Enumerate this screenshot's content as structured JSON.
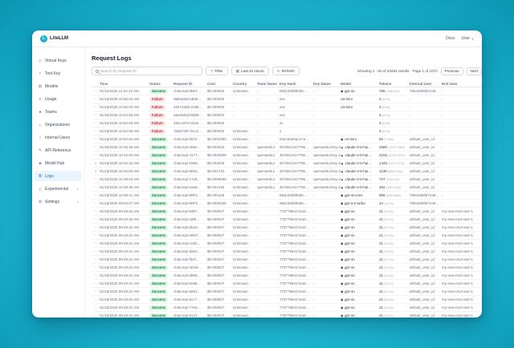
{
  "colors": {
    "background_teal": "#23bdd8",
    "accent_blue": "#1d6fc2",
    "success_bg": "#d7f5e3",
    "success_text": "#15803d",
    "failure_bg": "#fde3e3",
    "failure_text": "#c53030"
  },
  "topbar": {
    "brand": "LiteLLM",
    "docs_label": "Docs",
    "user_label": "User"
  },
  "sidebar": {
    "items": [
      {
        "label": "Virtual Keys",
        "icon_name": "key-icon",
        "glyph": "◇"
      },
      {
        "label": "Test Key",
        "icon_name": "test-key-icon",
        "glyph": "✓"
      },
      {
        "label": "Models",
        "icon_name": "models-icon",
        "glyph": "⊞"
      },
      {
        "label": "Usage",
        "icon_name": "usage-chart-icon",
        "glyph": "≡"
      },
      {
        "label": "Teams",
        "icon_name": "teams-icon",
        "glyph": "●"
      },
      {
        "label": "Organizations",
        "icon_name": "organizations-icon",
        "glyph": "⌂"
      },
      {
        "label": "Internal Users",
        "icon_name": "internal-users-icon",
        "glyph": "○"
      },
      {
        "label": "API Reference",
        "icon_name": "api-reference-icon",
        "glyph": "✎"
      },
      {
        "label": "Model Hub",
        "icon_name": "model-hub-icon",
        "glyph": "◈"
      },
      {
        "label": "Logs",
        "icon_name": "logs-icon",
        "glyph": "≣",
        "selected": true
      },
      {
        "label": "Experimental",
        "icon_name": "experimental-icon",
        "glyph": "△",
        "expandable": true
      },
      {
        "label": "Settings",
        "icon_name": "settings-icon",
        "glyph": "⚙",
        "expandable": true
      }
    ]
  },
  "page": {
    "title": "Request Logs"
  },
  "toolbar": {
    "search_placeholder": "Search by Request ID",
    "filter_label": "Filter",
    "time_range_label": "Last 24 Hours",
    "refresh_label": "Refresh"
  },
  "pagination": {
    "showing": "Showing 1 - 50 of 53494 results",
    "page": "Page 1 of 1070",
    "previous_label": "Previous",
    "next_label": "Next"
  },
  "table": {
    "columns": [
      "",
      "Time",
      "Status",
      "Request ID",
      "Cost",
      "Country",
      "Team Name",
      "Key Hash",
      "Key Name",
      "Model",
      "Tokens",
      "Internal User",
      "End User"
    ],
    "rows": [
      {
        "expanded": false,
        "time": "01/15/2025 11:02:10 AM",
        "status": "Success",
        "request_id": "chatcmpl-8B07…",
        "cost": "$0.000000",
        "country": "Unknown",
        "team": "-",
        "key_hash": "88dc28d8f838c…",
        "key_name": "-",
        "model": "gpt-4o",
        "provider": "openai",
        "tokens": "788",
        "tokens_detail": "(768+20)",
        "internal_user": "7854485087248…",
        "end_user": "-"
      },
      {
        "expanded": false,
        "time": "01/15/2025 10:55:02 AM",
        "status": "Failure",
        "request_id": "d8b4a5af-eb98…",
        "cost": "$0.000000",
        "country": "-",
        "team": "-",
        "key_hash": "sss",
        "key_name": "-",
        "model": "o3-mini",
        "provider": "none",
        "tokens": "0",
        "tokens_detail": "(0+0)",
        "internal_user": "-",
        "end_user": "-"
      },
      {
        "expanded": false,
        "time": "01/15/2025 10:55:00 AM",
        "status": "Failure",
        "request_id": "43474a9b-3188…",
        "cost": "$0.000000",
        "country": "-",
        "team": "-",
        "key_hash": "sss",
        "key_name": "-",
        "model": "o3-mini",
        "provider": "none",
        "tokens": "0",
        "tokens_detail": "(0+0)",
        "internal_user": "-",
        "end_user": "-"
      },
      {
        "expanded": false,
        "time": "01/15/2025 10:54:59 AM",
        "status": "Failure",
        "request_id": "a9eeb81d-b8b8…",
        "cost": "$0.000000",
        "country": "-",
        "team": "-",
        "key_hash": "sss",
        "key_name": "-",
        "model": "",
        "provider": "none",
        "tokens": "0",
        "tokens_detail": "(0+0)",
        "internal_user": "-",
        "end_user": "-"
      },
      {
        "expanded": false,
        "time": "01/15/2025 10:54:59 AM",
        "status": "Failure",
        "request_id": "334c187d-4b4e…",
        "cost": "$0.000000",
        "country": "-",
        "team": "-",
        "key_hash": "ss",
        "key_name": "-",
        "model": "",
        "provider": "none",
        "tokens": "0",
        "tokens_detail": "(0+0)",
        "internal_user": "-",
        "end_user": "-"
      },
      {
        "expanded": false,
        "time": "01/15/2025 10:54:58 AM",
        "status": "Failure",
        "request_id": "7eb67387-bcc2…",
        "cost": "$0.000000",
        "country": "Unknown",
        "team": "-",
        "key_hash": "s",
        "key_name": "-",
        "model": "",
        "provider": "none",
        "tokens": "0",
        "tokens_detail": "(0+0)",
        "internal_user": "-",
        "end_user": "-"
      },
      {
        "expanded": false,
        "time": "01/15/2025 10:54:54 AM",
        "status": "Success",
        "request_id": "chatcmpl-b87e…",
        "cost": "$0.0003382",
        "country": "Unknown",
        "team": "-",
        "key_hash": "84ec5a2eac17a…",
        "key_name": "-",
        "model": "o3-mini",
        "provider": "openai",
        "tokens": "92",
        "tokens_detail": "(7+85)",
        "internal_user": "default_user_id",
        "end_user": "-"
      },
      {
        "expanded": false,
        "time": "01/15/2025 10:45:49 AM",
        "status": "Success",
        "request_id": "chatcmpl-ebbe…",
        "cost": "$0.002034",
        "country": "Unknown",
        "team": "openwebui",
        "key_hash": "4b7651c6c7795…",
        "key_name": "openwebui-key-2",
        "model": "claude-3-5-hai…",
        "provider": "anthropic",
        "tokens": "2580",
        "tokens_detail": "(2127+453)",
        "internal_user": "default_user_id",
        "end_user": "-"
      },
      {
        "expanded": false,
        "time": "01/15/2025 10:43:00 AM",
        "status": "Success",
        "request_id": "chatcmpl-4177…",
        "cost": "$0.0020808",
        "country": "Unknown",
        "team": "openwebui",
        "key_hash": "4b7651c6c7795…",
        "key_name": "openwebui-key-2",
        "model": "claude-3-5-hai…",
        "provider": "anthropic",
        "tokens": "2102",
        "tokens_detail": "(1732+370)",
        "internal_user": "default_user_id",
        "end_user": "-"
      },
      {
        "expanded": true,
        "time": "01/15/2025 10:40:33 AM",
        "status": "Success",
        "request_id": "chatcmpl-1858…",
        "cost": "$0.002030",
        "country": "Unknown",
        "team": "openwebui",
        "key_hash": "4b7651c6c7795…",
        "key_name": "openwebui-key-2",
        "model": "claude-3-5-hai…",
        "provider": "anthropic",
        "tokens": "1433",
        "tokens_detail": "(1157+276)",
        "internal_user": "default_user_id",
        "end_user": "-"
      },
      {
        "expanded": true,
        "time": "01/15/2025 10:40:00 AM",
        "status": "Success",
        "request_id": "chatcmpl-883a…",
        "cost": "$0.001724",
        "country": "Unknown",
        "team": "openwebui",
        "key_hash": "4b7651c6c7795…",
        "key_name": "openwebui-key-2",
        "model": "claude-3-5-hai…",
        "provider": "anthropic",
        "tokens": "1139",
        "tokens_detail": "(885+254)",
        "internal_user": "default_user_id",
        "end_user": "-"
      },
      {
        "expanded": false,
        "time": "01/15/2025 10:39:53 AM",
        "status": "Success",
        "request_id": "chatcmpl-1748…",
        "cost": "$0.0009055",
        "country": "Unknown",
        "team": "openwebui",
        "key_hash": "4b7651c6c7795…",
        "key_name": "openwebui-key-2",
        "model": "claude-3-5-hai…",
        "provider": "anthropic",
        "tokens": "727",
        "tokens_detail": "(704+23)",
        "internal_user": "default_user_id",
        "end_user": "-"
      },
      {
        "expanded": false,
        "time": "01/15/2025 10:39:46 AM",
        "status": "Success",
        "request_id": "chatcmpl-eaa6…",
        "cost": "$0.001336",
        "country": "Unknown",
        "team": "openwebui",
        "key_hash": "4b7651c6c7795…",
        "key_name": "openwebui-key-2",
        "model": "claude-3-5-hai…",
        "provider": "anthropic",
        "tokens": "482",
        "tokens_detail": "(180+302)",
        "internal_user": "default_user_id",
        "end_user": "-"
      },
      {
        "expanded": false,
        "time": "01/15/2025 10:38:41 AM",
        "status": "Success",
        "request_id": "chatcmpl-88P1…",
        "cost": "$0.000445",
        "country": "Unknown",
        "team": "-",
        "key_hash": "88dc28d8f838c…",
        "key_name": "-",
        "model": "gpt-4o-mini",
        "provider": "openai",
        "tokens": "889",
        "tokens_detail": "(209+680)",
        "internal_user": "7854485087248…",
        "end_user": "-"
      },
      {
        "expanded": false,
        "time": "01/15/2025 09:53:57 AM",
        "status": "Success",
        "request_id": "chatcmpl-88P3…",
        "cost": "$0.0000325",
        "country": "Unknown",
        "team": "-",
        "key_hash": "88dc28d8f838c…",
        "key_name": "-",
        "model": "gpt-3.5-turbo",
        "provider": "openai",
        "tokens": "44",
        "tokens_detail": "(41+3)",
        "internal_user": "7854485087248…",
        "end_user": "-"
      },
      {
        "expanded": false,
        "time": "01/15/2025 09:49:32 AM",
        "status": "Success",
        "request_id": "chatcmpl-6db7…",
        "cost": "$0.000037",
        "country": "Unknown",
        "team": "-",
        "key_hash": "7787798417a4d…",
        "key_name": "-",
        "model": "gpt-4o",
        "provider": "openai",
        "tokens": "21",
        "tokens_detail": "(9+12)",
        "internal_user": "default_user_id",
        "end_user": "my-new-end-user-1"
      },
      {
        "expanded": false,
        "time": "01/15/2025 09:49:32 AM",
        "status": "Success",
        "request_id": "chatcmpl-2d8f…",
        "cost": "$0.000037",
        "country": "Unknown",
        "team": "-",
        "key_hash": "7787798417a4d…",
        "key_name": "-",
        "model": "gpt-4o",
        "provider": "openai",
        "tokens": "21",
        "tokens_detail": "(9+12)",
        "internal_user": "default_user_id",
        "end_user": "my-new-end-user-1"
      },
      {
        "expanded": false,
        "time": "01/15/2025 09:49:32 AM",
        "status": "Success",
        "request_id": "chatcmpl-d52a…",
        "cost": "$0.000037",
        "country": "Unknown",
        "team": "-",
        "key_hash": "7787798417a4d…",
        "key_name": "-",
        "model": "gpt-4o",
        "provider": "openai",
        "tokens": "21",
        "tokens_detail": "(9+12)",
        "internal_user": "default_user_id",
        "end_user": "my-new-end-user-1"
      },
      {
        "expanded": false,
        "time": "01/15/2025 09:49:31 AM",
        "status": "Success",
        "request_id": "chatcmpl-a8N7…",
        "cost": "$0.000037",
        "country": "Unknown",
        "team": "-",
        "key_hash": "7787798417a4d…",
        "key_name": "-",
        "model": "gpt-4o",
        "provider": "openai",
        "tokens": "21",
        "tokens_detail": "(9+12)",
        "internal_user": "default_user_id",
        "end_user": "my-new-end-user-1"
      },
      {
        "expanded": false,
        "time": "01/15/2025 09:49:31 AM",
        "status": "Success",
        "request_id": "chatcmpl-cc0b…",
        "cost": "$0.000037",
        "country": "Unknown",
        "team": "-",
        "key_hash": "7787798417a4d…",
        "key_name": "-",
        "model": "gpt-4o",
        "provider": "openai",
        "tokens": "21",
        "tokens_detail": "(9+12)",
        "internal_user": "default_user_id",
        "end_user": "my-new-end-user-1"
      },
      {
        "expanded": false,
        "time": "01/15/2025 09:49:31 AM",
        "status": "Success",
        "request_id": "chatcmpl-da81…",
        "cost": "$0.000037",
        "country": "Unknown",
        "team": "-",
        "key_hash": "7787798417a4d…",
        "key_name": "-",
        "model": "gpt-4o",
        "provider": "openai",
        "tokens": "21",
        "tokens_detail": "(9+12)",
        "internal_user": "default_user_id",
        "end_user": "my-new-end-user-1"
      },
      {
        "expanded": false,
        "time": "01/15/2025 09:49:31 AM",
        "status": "Success",
        "request_id": "chatcmpl-f5a7…",
        "cost": "$0.000037",
        "country": "Unknown",
        "team": "-",
        "key_hash": "7787798417a4d…",
        "key_name": "-",
        "model": "gpt-4o",
        "provider": "openai",
        "tokens": "21",
        "tokens_detail": "(9+12)",
        "internal_user": "default_user_id",
        "end_user": "my-new-end-user-1"
      },
      {
        "expanded": false,
        "time": "01/15/2025 09:49:31 AM",
        "status": "Success",
        "request_id": "chatcmpl-4Oe8…",
        "cost": "$0.000037",
        "country": "Unknown",
        "team": "-",
        "key_hash": "7787798417a4d…",
        "key_name": "-",
        "model": "gpt-4o",
        "provider": "openai",
        "tokens": "21",
        "tokens_detail": "(9+12)",
        "internal_user": "default_user_id",
        "end_user": "my-new-end-user-1"
      },
      {
        "expanded": false,
        "time": "01/15/2025 09:49:31 AM",
        "status": "Success",
        "request_id": "chatcmpl-d865…",
        "cost": "$0.000037",
        "country": "Unknown",
        "team": "-",
        "key_hash": "7787798417a4d…",
        "key_name": "-",
        "model": "gpt-4o",
        "provider": "openai",
        "tokens": "21",
        "tokens_detail": "(9+12)",
        "internal_user": "default_user_id",
        "end_user": "my-new-end-user-1"
      },
      {
        "expanded": false,
        "time": "01/15/2025 09:49:31 AM",
        "status": "Success",
        "request_id": "chatcmpl-6ed8…",
        "cost": "$0.000037",
        "country": "Unknown",
        "team": "-",
        "key_hash": "7787798417a4d…",
        "key_name": "-",
        "model": "gpt-4o",
        "provider": "openai",
        "tokens": "21",
        "tokens_detail": "(9+12)",
        "internal_user": "default_user_id",
        "end_user": "my-new-end-user-1"
      },
      {
        "expanded": false,
        "time": "01/15/2025 09:49:31 AM",
        "status": "Success",
        "request_id": "chatcmpl-a891…",
        "cost": "$0.000037",
        "country": "Unknown",
        "team": "-",
        "key_hash": "7787798417a4d…",
        "key_name": "-",
        "model": "gpt-4o",
        "provider": "openai",
        "tokens": "21",
        "tokens_detail": "(9+12)",
        "internal_user": "default_user_id",
        "end_user": "my-new-end-user-1"
      },
      {
        "expanded": false,
        "time": "01/15/2025 09:49:31 AM",
        "status": "Success",
        "request_id": "chatcmpl-6cc7…",
        "cost": "$0.000037",
        "country": "Unknown",
        "team": "-",
        "key_hash": "7787798417a4d…",
        "key_name": "-",
        "model": "gpt-4o",
        "provider": "openai",
        "tokens": "21",
        "tokens_detail": "(9+12)",
        "internal_user": "default_user_id",
        "end_user": "my-new-end-user-1"
      },
      {
        "expanded": false,
        "time": "01/15/2025 09:49:31 AM",
        "status": "Success",
        "request_id": "chatcmpl-77e5…",
        "cost": "$0.000037",
        "country": "Unknown",
        "team": "-",
        "key_hash": "7787798417a4d…",
        "key_name": "-",
        "model": "gpt-4o",
        "provider": "openai",
        "tokens": "21",
        "tokens_detail": "(9+12)",
        "internal_user": "default_user_id",
        "end_user": "my-new-end-user-1"
      },
      {
        "expanded": false,
        "time": "01/15/2025 09:49:31 AM",
        "status": "Success",
        "request_id": "chatcmpl-8147…",
        "cost": "$0.000037",
        "country": "Unknown",
        "team": "-",
        "key_hash": "7787798417a4d…",
        "key_name": "-",
        "model": "gpt-4o",
        "provider": "openai",
        "tokens": "21",
        "tokens_detail": "(9+12)",
        "internal_user": "default_user_id",
        "end_user": "my-new-end-user-1"
      },
      {
        "expanded": false,
        "time": "01/15/2025 09:49:31 AM",
        "status": "Success",
        "request_id": "chatcmpl-8968…",
        "cost": "$0.000037",
        "country": "Unknown",
        "team": "-",
        "key_hash": "7787798417a4d…",
        "key_name": "-",
        "model": "gpt-4o",
        "provider": "openai",
        "tokens": "21",
        "tokens_detail": "(9+12)",
        "internal_user": "default_user_id",
        "end_user": "my-new-end-user-1"
      },
      {
        "expanded": false,
        "time": "01/15/2025 09:49:31 AM",
        "status": "Success",
        "request_id": "chatcmpl-u327…",
        "cost": "$0.000037",
        "country": "Unknown",
        "team": "-",
        "key_hash": "7787798417a4d…",
        "key_name": "-",
        "model": "gpt-4o",
        "provider": "openai",
        "tokens": "21",
        "tokens_detail": "(9+12)",
        "internal_user": "default_user_id",
        "end_user": "my-new-end-user-1"
      }
    ]
  }
}
